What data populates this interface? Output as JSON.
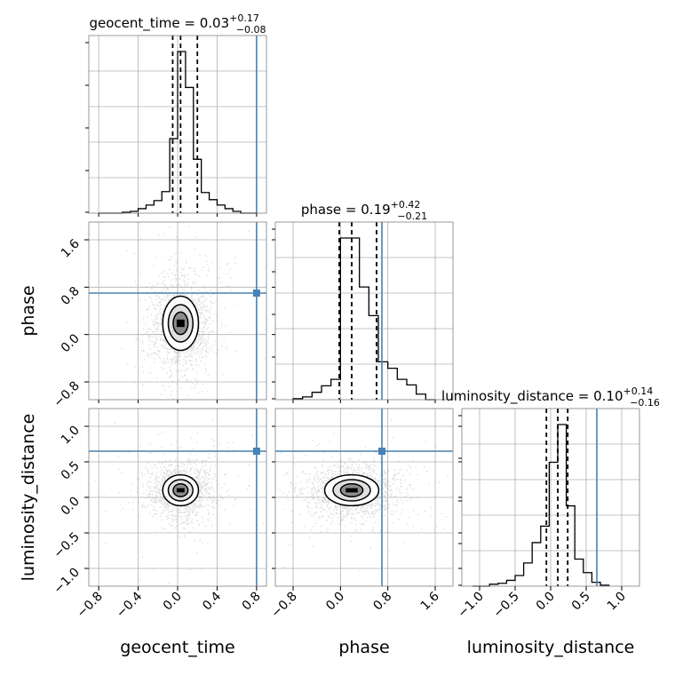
{
  "chart_data": {
    "type": "corner",
    "parameters": [
      "geocent_time",
      "phase",
      "luminosity_distance"
    ],
    "colors": {
      "truth": "#4682b4",
      "hist": "#000000",
      "grid": "#b0b0b0",
      "points": "#a0a0a0"
    },
    "grid": true,
    "titles": [
      {
        "name": "geocent_time",
        "median": "0.03",
        "plus": "+0.17",
        "minus": "−0.08"
      },
      {
        "name": "phase",
        "median": "0.19",
        "plus": "+0.42",
        "minus": "−0.21"
      },
      {
        "name": "luminosity_distance",
        "median": "0.10",
        "plus": "+0.14",
        "minus": "−0.16"
      }
    ],
    "truths": [
      0.8,
      0.7,
      0.65
    ],
    "ranges": [
      [
        -0.9,
        0.9
      ],
      [
        -1.1,
        1.9
      ],
      [
        -1.25,
        1.25
      ]
    ],
    "ticks": {
      "geocent_time": [
        -0.8,
        -0.4,
        0.0,
        0.4,
        0.8
      ],
      "phase": [
        -0.8,
        0.0,
        0.8,
        1.6
      ],
      "luminosity_distance": [
        -1.0,
        -0.5,
        0.0,
        0.5,
        1.0
      ]
    },
    "tick_labels": {
      "geocent_time": [
        "−0.8",
        "−0.4",
        "0.0",
        "0.4",
        "0.8"
      ],
      "phase": [
        "−0.8",
        "0.0",
        "0.8",
        "1.6"
      ],
      "luminosity_distance": [
        "−1.0",
        "−0.5",
        "0.0",
        "0.5",
        "1.0"
      ]
    },
    "quantiles": {
      "geocent_time": [
        -0.05,
        0.03,
        0.2
      ],
      "phase": [
        -0.02,
        0.19,
        0.61
      ],
      "luminosity_distance": [
        -0.06,
        0.1,
        0.24
      ]
    },
    "histograms": {
      "geocent_time": {
        "edges": [
          -0.8,
          -0.72,
          -0.64,
          -0.56,
          -0.48,
          -0.4,
          -0.32,
          -0.24,
          -0.16,
          -0.08,
          0.0,
          0.08,
          0.16,
          0.24,
          0.32,
          0.4,
          0.48,
          0.56,
          0.64,
          0.72,
          0.8
        ],
        "counts": [
          0,
          0,
          0,
          1,
          2,
          5,
          9,
          14,
          24,
          83,
          180,
          140,
          60,
          23,
          15,
          9,
          5,
          2,
          0,
          0
        ]
      },
      "phase": {
        "edges": [
          -0.8,
          -0.64,
          -0.48,
          -0.32,
          -0.16,
          0.0,
          0.16,
          0.32,
          0.48,
          0.64,
          0.8,
          0.96,
          1.12,
          1.28,
          1.44,
          1.6
        ],
        "counts": [
          1,
          3,
          8,
          15,
          22,
          175,
          175,
          122,
          91,
          41,
          34,
          22,
          16,
          6,
          0
        ]
      },
      "luminosity_distance": {
        "edges": [
          -1.1,
          -0.98,
          -0.86,
          -0.74,
          -0.62,
          -0.5,
          -0.38,
          -0.26,
          -0.14,
          -0.02,
          0.1,
          0.22,
          0.34,
          0.46,
          0.58,
          0.7,
          0.82
        ],
        "counts": [
          0,
          0,
          2,
          3,
          6,
          11,
          24,
          45,
          62,
          128,
          167,
          83,
          28,
          14,
          4,
          1
        ]
      }
    }
  }
}
